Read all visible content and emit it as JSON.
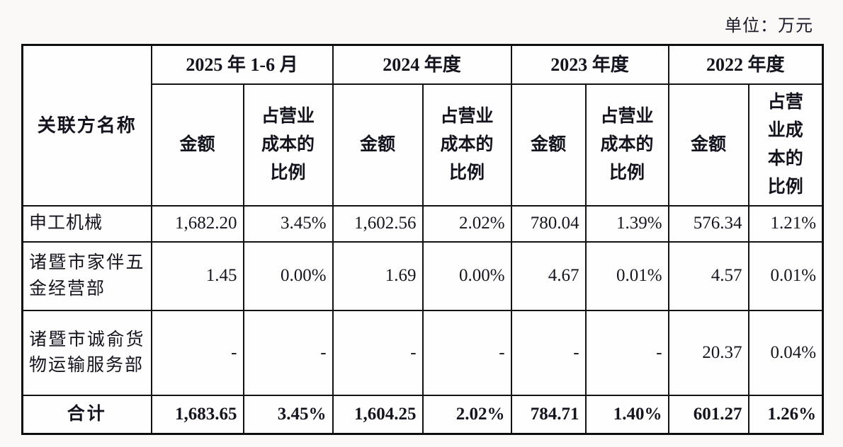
{
  "unit_label": "单位：万元",
  "table": {
    "corner_header": "关联方名称",
    "period_groups": [
      {
        "label": "2025 年 1-6 月",
        "amount_header": "金额",
        "ratio_header": "占营业成本的比例"
      },
      {
        "label": "2024 年度",
        "amount_header": "金额",
        "ratio_header": "占营业成本的比例"
      },
      {
        "label": "2023 年度",
        "amount_header": "金额",
        "ratio_header": "占营业成本的比例"
      },
      {
        "label": "2022 年度",
        "amount_header": "金额",
        "ratio_header": "占营业成本的比例"
      }
    ],
    "rows": [
      {
        "name": "申工机械",
        "values": [
          "1,682.20",
          "3.45%",
          "1,602.56",
          "2.02%",
          "780.04",
          "1.39%",
          "576.34",
          "1.21%"
        ]
      },
      {
        "name": "诸暨市家伴五金经营部",
        "values": [
          "1.45",
          "0.00%",
          "1.69",
          "0.00%",
          "4.67",
          "0.01%",
          "4.57",
          "0.01%"
        ]
      },
      {
        "name": "诸暨市诚俞货物运输服务部",
        "values": [
          "-",
          "-",
          "-",
          "-",
          "-",
          "-",
          "20.37",
          "0.04%"
        ]
      }
    ],
    "total_row": {
      "name": "合计",
      "values": [
        "1,683.65",
        "3.45%",
        "1,604.25",
        "2.02%",
        "784.71",
        "1.40%",
        "601.27",
        "1.26%"
      ]
    }
  }
}
